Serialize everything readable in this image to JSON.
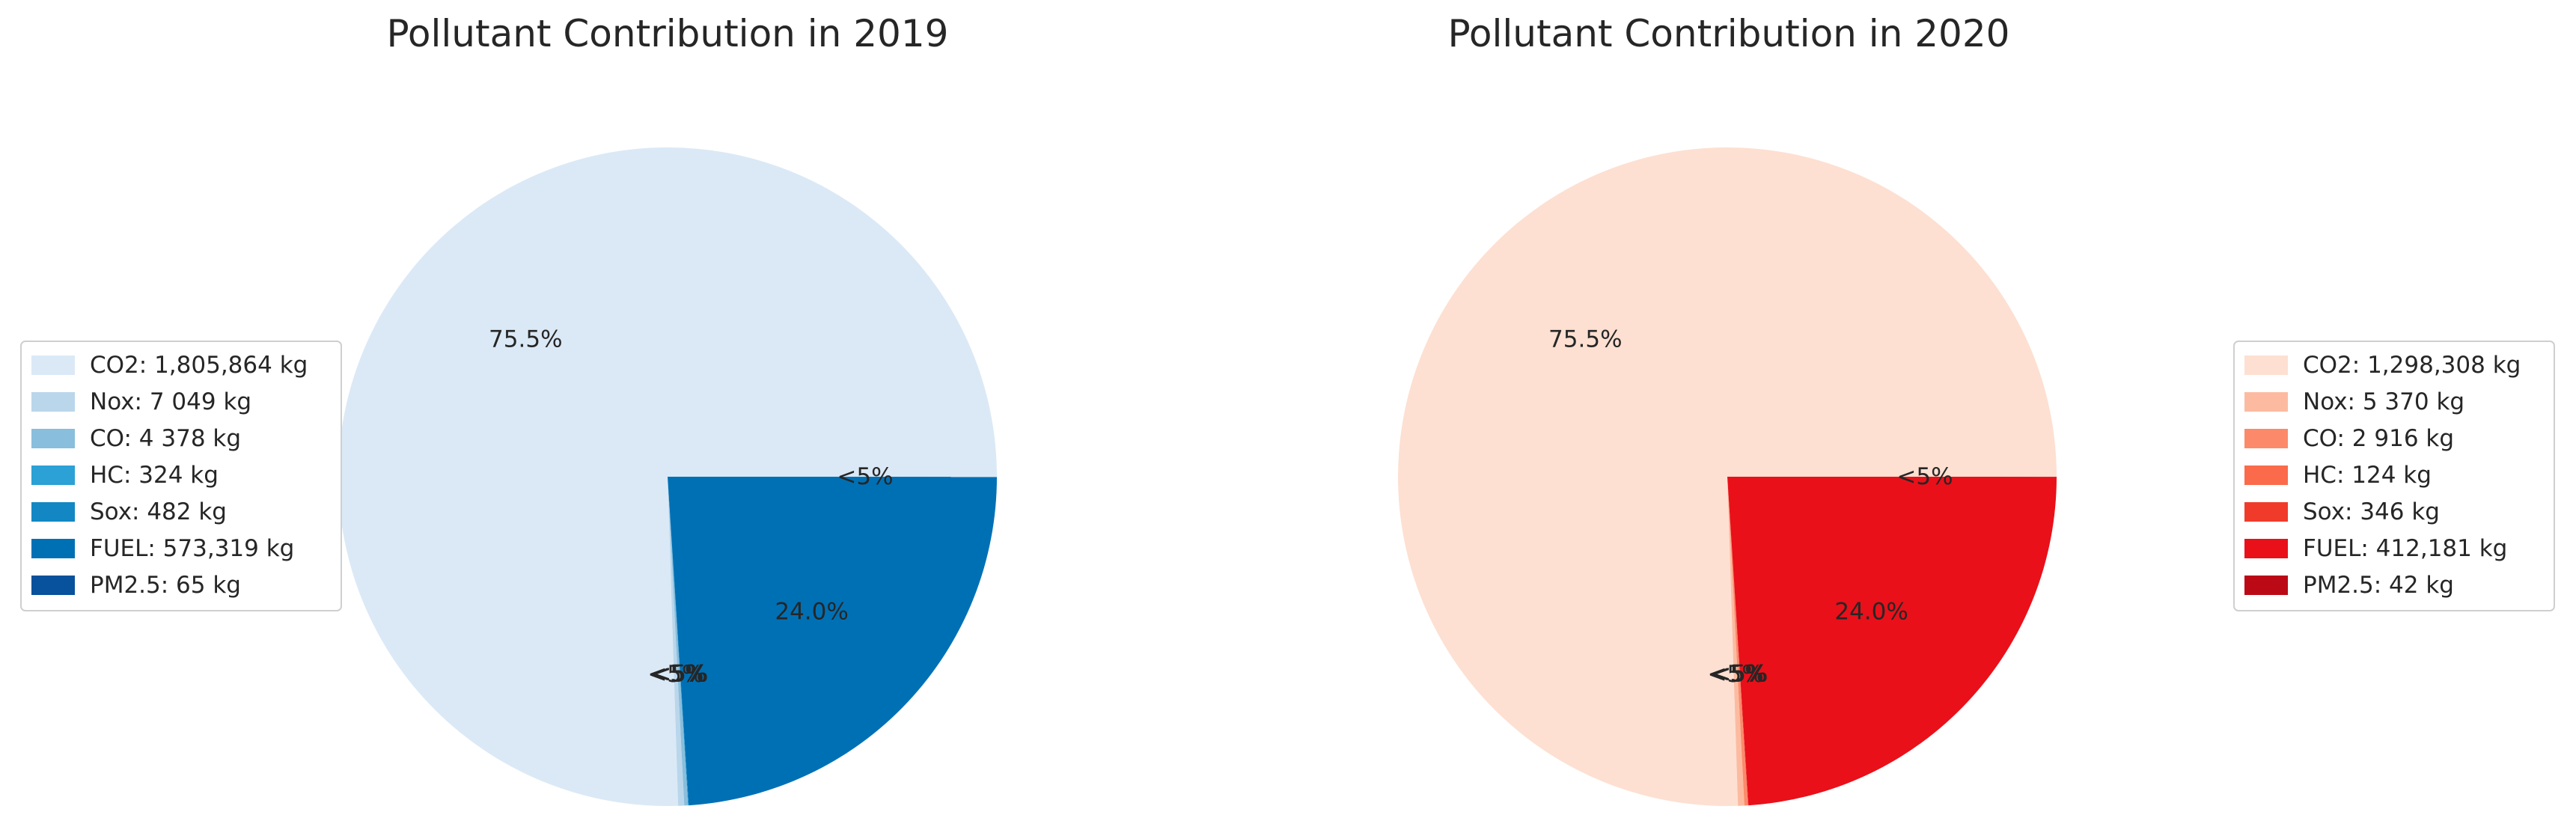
{
  "chart_data": [
    {
      "type": "pie",
      "title": "Pollutant Contribution in 2019",
      "unit": "kg",
      "legend_position": "left",
      "slices": [
        {
          "name": "CO2",
          "legend": "CO2: 1,805,864 kg",
          "value": 1805864,
          "color": "#dbe9f6",
          "label": "75.5%"
        },
        {
          "name": "Nox",
          "legend": "Nox: 7 049 kg",
          "value": 7049,
          "color": "#bad6eb",
          "label": "<5%"
        },
        {
          "name": "CO",
          "legend": "CO: 4 378 kg",
          "value": 4378,
          "color": "#89bedc",
          "label": "<5%"
        },
        {
          "name": "HC",
          "legend": "HC: 324 kg",
          "value": 324,
          "color": "#2ba1d5",
          "label": "<5%"
        },
        {
          "name": "Sox",
          "legend": "Sox: 482 kg",
          "value": 482,
          "color": "#1287c4",
          "label": "<5%"
        },
        {
          "name": "FUEL",
          "legend": "FUEL: 573,319 kg",
          "value": 573319,
          "color": "#0070b5",
          "label": "24.0%"
        },
        {
          "name": "PM2.5",
          "legend": "PM2.5: 65 kg",
          "value": 65,
          "color": "#08519c",
          "label": "<5%"
        }
      ]
    },
    {
      "type": "pie",
      "title": "Pollutant Contribution in 2020",
      "unit": "kg",
      "legend_position": "right",
      "slices": [
        {
          "name": "CO2",
          "legend": "CO2: 1,298,308 kg",
          "value": 1298308,
          "color": "#fde0d2",
          "label": "75.5%"
        },
        {
          "name": "Nox",
          "legend": "Nox: 5 370 kg",
          "value": 5370,
          "color": "#fcbba1",
          "label": "<5%"
        },
        {
          "name": "CO",
          "legend": "CO: 2 916 kg",
          "value": 2916,
          "color": "#fc8a6a",
          "label": "<5%"
        },
        {
          "name": "HC",
          "legend": "HC: 124 kg",
          "value": 124,
          "color": "#fb6a4a",
          "label": "<5%"
        },
        {
          "name": "Sox",
          "legend": "Sox: 346 kg",
          "value": 346,
          "color": "#f03b2b",
          "label": "<5%"
        },
        {
          "name": "FUEL",
          "legend": "FUEL: 412,181 kg",
          "value": 412181,
          "color": "#e9101a",
          "label": "24.0%"
        },
        {
          "name": "PM2.5",
          "legend": "PM2.5: 42 kg",
          "value": 42,
          "color": "#bb0a16",
          "label": "<5%"
        }
      ]
    }
  ]
}
